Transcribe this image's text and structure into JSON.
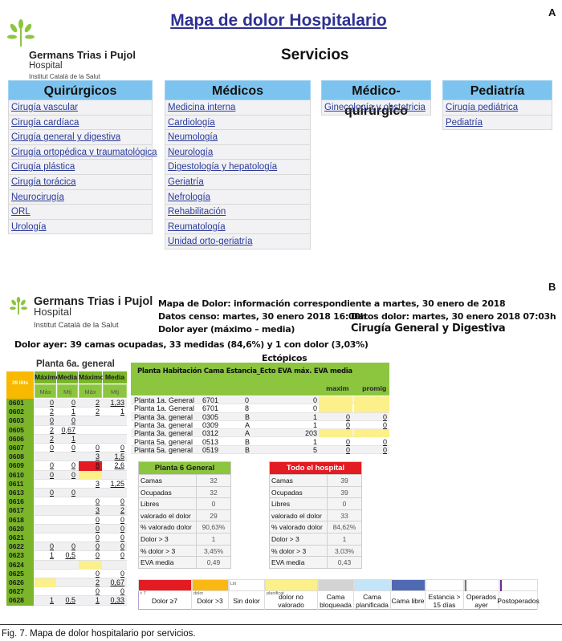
{
  "panel_a": {
    "letter": "A",
    "title": "Mapa de dolor Hospitalario",
    "logo": {
      "name": "Germans Trias i Pujol",
      "sub": "Hospital",
      "inst": "Institut Català de la Salut"
    },
    "section_title": "Servicios",
    "columns": [
      {
        "header": "Quirúrgicos",
        "items": [
          "Cirugía vascular",
          "Cirugía cardíaca",
          "Cirugía general y digestiva",
          "Cirugía ortopédica y traumatológica",
          "Cirugía plástica",
          "Cirugía torácica",
          "Neurocirugía",
          "ORL",
          "Urología"
        ]
      },
      {
        "header": "Médicos",
        "items": [
          "Medicina interna",
          "Cardiología",
          "Neumología",
          "Neurología",
          "Digestología y hepatología",
          "Geriatría",
          "Nefrología",
          "Rehabilitación",
          "Reumatología",
          "Unidad orto-geriatría"
        ]
      },
      {
        "header": "Médico-quirúrgico",
        "items": [
          "Ginecología y obstetricia"
        ]
      },
      {
        "header": "Pediatría",
        "items": [
          "Cirugía pediátrica",
          "Pediatría"
        ]
      }
    ],
    "colors": {
      "header_bg": "#7cc4ef",
      "link": "#2b3a9a",
      "title": "#2e3192"
    }
  },
  "panel_b": {
    "letter": "B",
    "logo": {
      "name": "Germans Trias i Pujol",
      "sub": "Hospital",
      "inst": "Institut Català de la Salut"
    },
    "info": {
      "line1": "Mapa de Dolor: información correspondiente a martes, 30 enero de 2018",
      "censo": "Datos censo: martes, 30 enero 2018 16:00h",
      "dolor_datos": "Datos dolor: martes, 30 enero 2018 07:03h",
      "dolor_ayer": "Dolor ayer (máximo – media)",
      "servicio": "Cirugía General y Digestiva"
    },
    "summary": "Dolor ayer: 39 camas ocupadas, 33 medidas (84,6%) y 1 con dolor (3,03%)",
    "planta": {
      "title": "Planta 6a. general",
      "beds_label": "39 llits",
      "headers1": [
        "Máximo",
        "Media",
        "Máximo",
        "Media"
      ],
      "headers2": [
        "Màx",
        "Mtj",
        "Màx",
        "Mtj"
      ],
      "rows": [
        [
          "0601",
          "0",
          "0",
          "2",
          "1,33"
        ],
        [
          "0602",
          "2",
          "1",
          "2",
          "1"
        ],
        [
          "0603",
          "0",
          "0",
          "",
          ""
        ],
        [
          "0605",
          "2",
          "0,67",
          "",
          ""
        ],
        [
          "0606",
          "2",
          "1",
          "",
          ""
        ],
        [
          "0607",
          "0",
          "0",
          "0",
          "0"
        ],
        [
          "0608",
          "",
          "",
          "3",
          "1,5"
        ],
        [
          "0609",
          "0",
          "0",
          "8",
          "2,6"
        ],
        [
          "0610",
          "0",
          "0",
          "",
          ""
        ],
        [
          "0611",
          "",
          "",
          "3",
          "1,25"
        ],
        [
          "0613",
          "0",
          "0",
          "",
          ""
        ],
        [
          "0616",
          "",
          "",
          "0",
          "0"
        ],
        [
          "0617",
          "",
          "",
          "3",
          "2"
        ],
        [
          "0618",
          "",
          "",
          "0",
          "0"
        ],
        [
          "0620",
          "",
          "",
          "0",
          "0"
        ],
        [
          "0621",
          "",
          "",
          "0",
          "0"
        ],
        [
          "0622",
          "0",
          "0",
          "0",
          "0"
        ],
        [
          "0623",
          "1",
          "0,5",
          "0",
          "0"
        ],
        [
          "0624",
          "",
          "",
          "",
          ""
        ],
        [
          "0625",
          "",
          "",
          "0",
          "0"
        ],
        [
          "0626",
          "",
          "",
          "2",
          "0,67"
        ],
        [
          "0627",
          "",
          "",
          "0",
          "0"
        ],
        [
          "0628",
          "1",
          "0,5",
          "1",
          "0,33"
        ]
      ],
      "highlights": [
        {
          "row": "0609",
          "col": 3,
          "status": "dolor ≥7"
        },
        {
          "row": "0610",
          "col": 3,
          "status": "dolor no valorado"
        },
        {
          "row": "0624",
          "col": 3,
          "status": "dolor no valorado"
        },
        {
          "row": "0626",
          "col": 1,
          "status": "dolor no valorado"
        }
      ]
    },
    "ectopicos": {
      "title": "Ectópicos",
      "header": "Planta Habitación Cama Estancia_Ecto EVA máx. EVA media",
      "subheaders": [
        "maxim",
        "promig"
      ],
      "rows": [
        [
          "Planta 1a. General",
          "6701",
          "0",
          "0",
          "",
          ""
        ],
        [
          "Planta 1a. General",
          "6701",
          "8",
          "0",
          "",
          ""
        ],
        [
          "Planta 3a. general",
          "0305",
          "B",
          "1",
          "0",
          "0"
        ],
        [
          "Planta 3a. general",
          "0309",
          "A",
          "1",
          "0",
          "0"
        ],
        [
          "Planta 3a. general",
          "0312",
          "A",
          "203",
          "",
          ""
        ],
        [
          "Planta 5a. general",
          "0513",
          "B",
          "1",
          "0",
          "0"
        ],
        [
          "Planta 5a. general",
          "0519",
          "B",
          "5",
          "0",
          "0"
        ]
      ]
    },
    "stats": [
      {
        "title": "Planta 6 General",
        "color": "#8cc63f",
        "rows": [
          [
            "Camas",
            "32"
          ],
          [
            "Ocupadas",
            "32"
          ],
          [
            "Libres",
            "0"
          ],
          [
            "valorado el dolor",
            "29"
          ],
          [
            "% valorado dolor",
            "90,63%"
          ],
          [
            "Dolor > 3",
            "1"
          ],
          [
            "% dolor > 3",
            "3,45%"
          ],
          [
            "EVA media",
            "0,49"
          ]
        ]
      },
      {
        "title": "Todo el hospital",
        "color": "#e31b23",
        "rows": [
          [
            "Camas",
            "39"
          ],
          [
            "Ocupadas",
            "39"
          ],
          [
            "Libres",
            "0"
          ],
          [
            "valorado el dolor",
            "33"
          ],
          [
            "% valorado dolor",
            "84,62%"
          ],
          [
            "Dolor > 3",
            "1"
          ],
          [
            "% dolor > 3",
            "3,03%"
          ],
          [
            "EVA media",
            "0,43"
          ]
        ]
      }
    ],
    "legend": [
      {
        "label": "Dolor ≥7",
        "color": "#e31b23",
        "small": "> 7"
      },
      {
        "label": "Dolor >3",
        "color": "#fbb714",
        "small": "dolor"
      },
      {
        "label": "Sin dolor",
        "color": "#ffffff",
        "small": "Llit"
      },
      {
        "label": "dolor no valorado",
        "color": "#fbf08a",
        "small": "planificat"
      },
      {
        "label": "Cama bloqueada",
        "color": "#d3d3d3",
        "small": ""
      },
      {
        "label": "Cama planificada",
        "color": "#c3e5f9",
        "small": ""
      },
      {
        "label": "Cama libre",
        "color": "#4f69b3",
        "small": ""
      },
      {
        "label": "Estancia > 15 días",
        "color": "#ffffff",
        "small": ""
      },
      {
        "label": "Operados ayer",
        "color": "#ffffff",
        "bar": "#777777",
        "small": ""
      },
      {
        "label": "Postoperados",
        "color": "#ffffff",
        "bar": "#6a2c91",
        "small": ""
      }
    ]
  },
  "caption": "Fig. 7. Mapa de dolor hospitalario por servicios."
}
